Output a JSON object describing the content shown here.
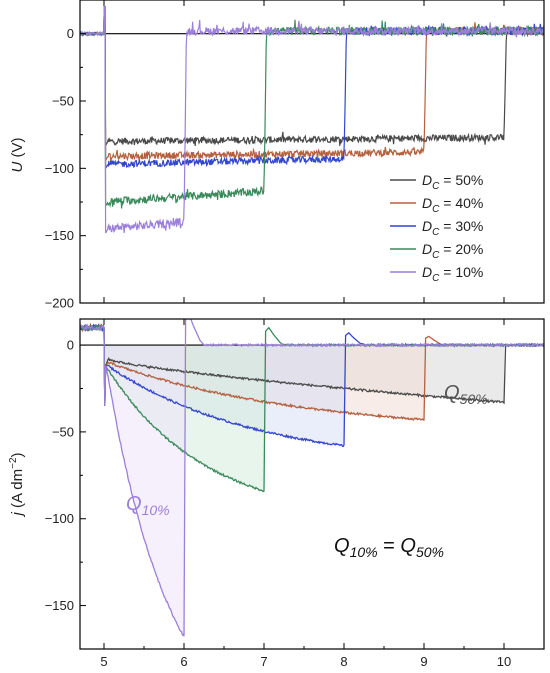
{
  "chart_data": [
    {
      "type": "line",
      "panel": "top",
      "xlabel": "",
      "ylabel": {
        "symbol": "U",
        "unit": " (V)"
      },
      "xlim": [
        4.7,
        10.5
      ],
      "ylim": [
        -200,
        25
      ],
      "xticks": [
        5,
        6,
        7,
        8,
        9,
        10
      ],
      "yticks": [
        0,
        -50,
        -100,
        -150,
        -200
      ],
      "ytick_labels": [
        "0",
        "−50",
        "−100",
        "−150",
        "−200"
      ],
      "grid": false,
      "zero_line": true,
      "legend_position": "center-right",
      "series": [
        {
          "name": "DC = 50%",
          "label_sub": "C",
          "label_rest": " = 50%",
          "color": "#4a4a4a",
          "on": 5.0,
          "off": 10.0,
          "level": -80,
          "level_end": -77,
          "noise": 2.5
        },
        {
          "name": "DC = 40%",
          "label_sub": "C",
          "label_rest": " = 40%",
          "color": "#b5603e",
          "on": 5.0,
          "off": 9.0,
          "level": -91,
          "level_end": -88,
          "noise": 2.5
        },
        {
          "name": "DC = 30%",
          "label_sub": "C",
          "label_rest": " = 30%",
          "color": "#3347cc",
          "on": 5.0,
          "off": 8.0,
          "level": -97,
          "level_end": -93,
          "noise": 2.5
        },
        {
          "name": "DC = 20%",
          "label_sub": "C",
          "label_rest": " = 20%",
          "color": "#3a8a5c",
          "on": 5.0,
          "off": 7.0,
          "level": -125,
          "level_end": -117,
          "noise": 3
        },
        {
          "name": "DC = 10%",
          "label_sub": "C",
          "label_rest": " = 10%",
          "color": "#9b7fd9",
          "on": 5.0,
          "off": 6.0,
          "level": -145,
          "level_end": -140,
          "noise": 3
        }
      ]
    },
    {
      "type": "area",
      "panel": "bottom",
      "xlabel": "",
      "ylabel": {
        "symbol": "j",
        "unit_pre": " (A dm",
        "sup": "−2",
        "unit_post": ")"
      },
      "xlim": [
        4.7,
        10.5
      ],
      "ylim": [
        -175,
        15
      ],
      "xticks": [
        5,
        6,
        7,
        8,
        9,
        10
      ],
      "xtick_labels": [
        "5",
        "6",
        "7",
        "8",
        "9",
        "10"
      ],
      "yticks": [
        0,
        -50,
        -100,
        -150
      ],
      "ytick_labels": [
        "0",
        "−50",
        "−100",
        "−150"
      ],
      "grid": false,
      "zero_line": true,
      "series": [
        {
          "name": "DC = 50%",
          "color": "#4a4a4a",
          "fill": "#d9d9d9",
          "on": 5.0,
          "off": 10.0,
          "start": -8,
          "end": -33,
          "overshoot": 0
        },
        {
          "name": "DC = 40%",
          "color": "#b5603e",
          "fill": "#f1dcd3",
          "on": 5.0,
          "off": 9.0,
          "start": -10,
          "end": -43,
          "overshoot": 5
        },
        {
          "name": "DC = 30%",
          "color": "#3347cc",
          "fill": "#d8def6",
          "on": 5.0,
          "off": 8.0,
          "start": -12,
          "end": -58,
          "overshoot": 7
        },
        {
          "name": "DC = 20%",
          "color": "#3a8a5c",
          "fill": "#d5ecdd",
          "on": 5.0,
          "off": 7.0,
          "start": -14,
          "end": -84,
          "overshoot": 10
        },
        {
          "name": "DC = 10%",
          "color": "#9b7fd9",
          "fill": "#ece4fa",
          "on": 5.0,
          "off": 6.0,
          "start": -18,
          "end": -168,
          "overshoot": 18
        }
      ],
      "annotations": [
        {
          "base": "Q",
          "sub": "50%",
          "color": "#555555"
        },
        {
          "base": "Q",
          "sub": "10%",
          "color": "#9b7fd9"
        },
        {
          "lhs_base": "Q",
          "lhs_sub": "10%",
          "mid": " = ",
          "rhs_base": "Q",
          "rhs_sub": "50%",
          "color": "#111111"
        }
      ]
    }
  ]
}
